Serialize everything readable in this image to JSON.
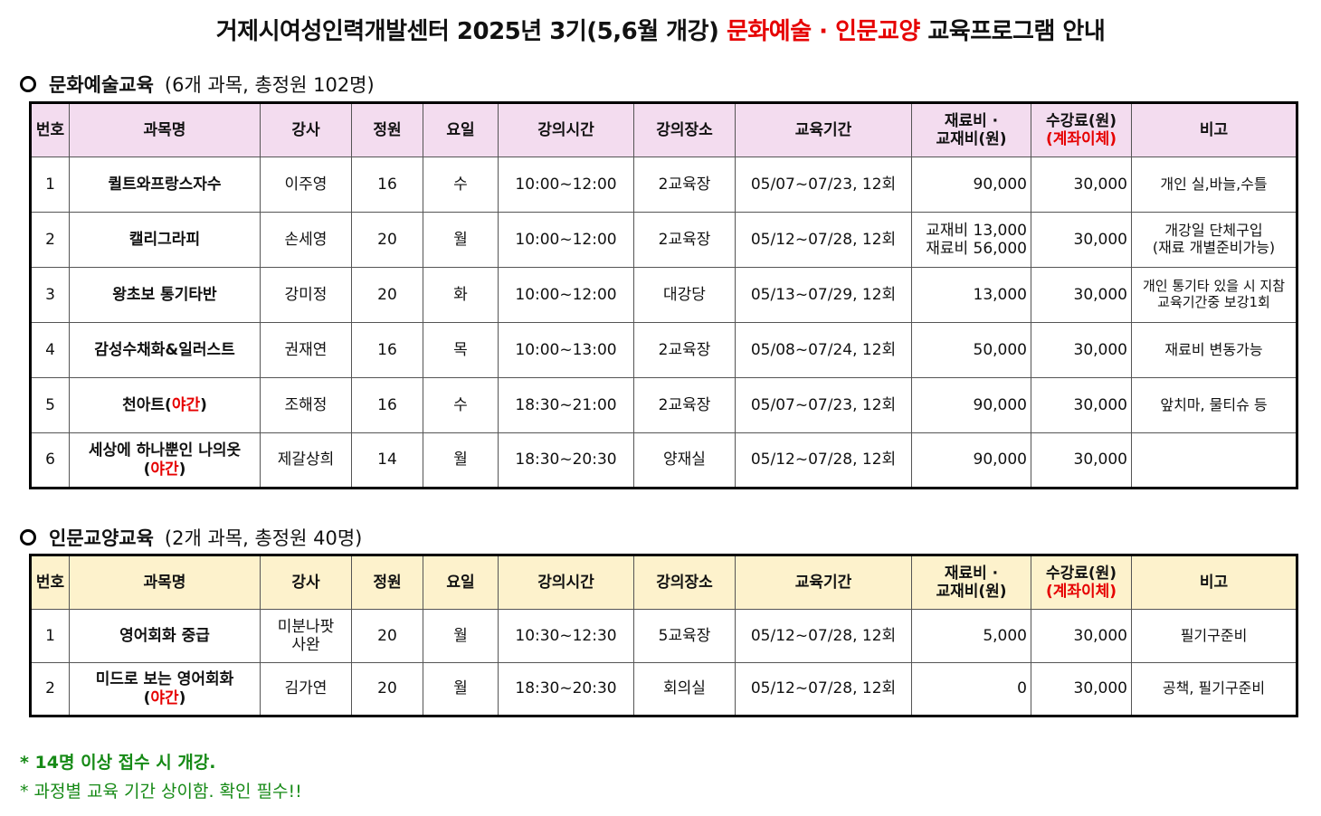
{
  "title": {
    "part1": "거제시여성인력개발센터 2025년 3기(5,6월 개강) ",
    "highlight": "문화예술 · 인문교양",
    "part2": " 교육프로그램 안내"
  },
  "headers": {
    "no": "번호",
    "subject": "과목명",
    "instructor": "강사",
    "capacity": "정원",
    "day": "요일",
    "time": "강의시간",
    "place": "강의장소",
    "period": "교육기간",
    "material_l1": "재료비 ·",
    "material_l2": "교재비(원)",
    "fee_l1": "수강료(원)",
    "fee_l2": "(계좌이체)",
    "remark": "비고"
  },
  "section1": {
    "title": "문화예술교육",
    "subtitle": "(6개 과목, 총정원 102명)",
    "rows": [
      {
        "no": "1",
        "name": "퀼트와프랑스자수",
        "night": "",
        "instructor": "이주영",
        "capacity": "16",
        "day": "수",
        "time": "10:00~12:00",
        "place": "2교육장",
        "period": "05/07~07/23, 12회",
        "material": "90,000",
        "material2": "",
        "fee": "30,000",
        "remark": "개인 실,바늘,수틀",
        "remark2": ""
      },
      {
        "no": "2",
        "name": "캘리그라피",
        "night": "",
        "instructor": "손세영",
        "capacity": "20",
        "day": "월",
        "time": "10:00~12:00",
        "place": "2교육장",
        "period": "05/12~07/28, 12회",
        "material": "교재비 13,000",
        "material2": "재료비 56,000",
        "fee": "30,000",
        "remark": "개강일 단체구입",
        "remark2": "(재료 개별준비가능)"
      },
      {
        "no": "3",
        "name": "왕초보 통기타반",
        "night": "",
        "instructor": "강미정",
        "capacity": "20",
        "day": "화",
        "time": "10:00~12:00",
        "place": "대강당",
        "period": "05/13~07/29, 12회",
        "material": "13,000",
        "material2": "",
        "fee": "30,000",
        "remark": "개인 통기타 있을 시 지참",
        "remark2": "교육기간중 보강1회"
      },
      {
        "no": "4",
        "name": "감성수채화&일러스트",
        "night": "",
        "instructor": "권재연",
        "capacity": "16",
        "day": "목",
        "time": "10:00~13:00",
        "place": "2교육장",
        "period": "05/08~07/24, 12회",
        "material": "50,000",
        "material2": "",
        "fee": "30,000",
        "remark": "재료비 변동가능",
        "remark2": ""
      },
      {
        "no": "5",
        "name": "천아트",
        "night": "야간",
        "instructor": "조해정",
        "capacity": "16",
        "day": "수",
        "time": "18:30~21:00",
        "place": "2교육장",
        "period": "05/07~07/23, 12회",
        "material": "90,000",
        "material2": "",
        "fee": "30,000",
        "remark": "앞치마, 물티슈 등",
        "remark2": ""
      },
      {
        "no": "6",
        "name": "세상에 하나뿐인 나의옷",
        "night": "야간",
        "instructor": "제갈상희",
        "capacity": "14",
        "day": "월",
        "time": "18:30~20:30",
        "place": "양재실",
        "period": "05/12~07/28, 12회",
        "material": "90,000",
        "material2": "",
        "fee": "30,000",
        "remark": "",
        "remark2": ""
      }
    ]
  },
  "section2": {
    "title": "인문교양교육",
    "subtitle": "(2개 과목, 총정원 40명)",
    "rows": [
      {
        "no": "1",
        "name": "영어회화 중급",
        "night": "",
        "instructor": "미분나팟",
        "instructor2": "사완",
        "capacity": "20",
        "day": "월",
        "time": "10:30~12:30",
        "place": "5교육장",
        "period": "05/12~07/28, 12회",
        "material": "5,000",
        "fee": "30,000",
        "remark": "필기구준비"
      },
      {
        "no": "2",
        "name": "미드로 보는 영어회화",
        "night": "야간",
        "instructor": "김가연",
        "instructor2": "",
        "capacity": "20",
        "day": "월",
        "time": "18:30~20:30",
        "place": "회의실",
        "period": "05/12~07/28, 12회",
        "material": "0",
        "fee": "30,000",
        "remark": "공책, 필기구준비"
      }
    ]
  },
  "footnotes": {
    "note1": "* 14명 이상 접수 시 개강.",
    "note2": "* 과정별 교육 기간 상이함. 확인 필수!!"
  }
}
